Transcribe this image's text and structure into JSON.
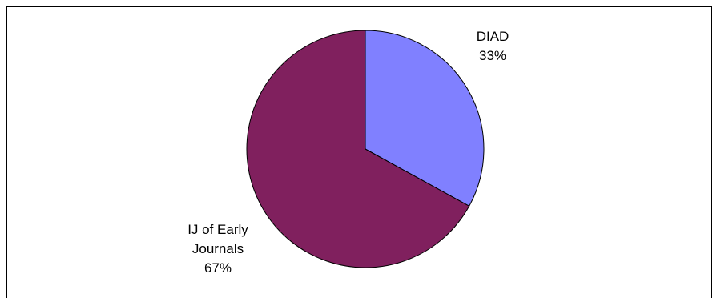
{
  "chart_data": {
    "type": "pie",
    "slices": [
      {
        "label_lines": [
          "DIAD"
        ],
        "percent_label": "33%",
        "value": 33,
        "color": "#8080ff"
      },
      {
        "label_lines": [
          "IJ of Early",
          "Journals"
        ],
        "percent_label": "67%",
        "value": 67,
        "color": "#80205e"
      }
    ],
    "start_angle_degrees": 0,
    "direction": "clockwise",
    "legend": "none"
  }
}
